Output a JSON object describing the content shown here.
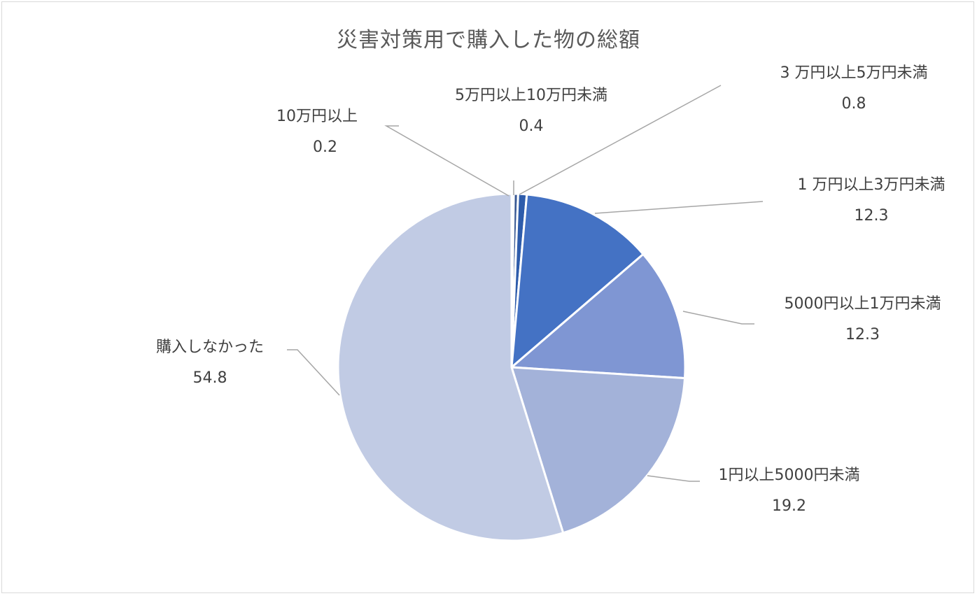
{
  "chart_data": {
    "type": "pie",
    "title": "災害対策用で購入した物の総額",
    "start_angle": "12 o'clock, clockwise",
    "slices": [
      {
        "label": "10万円以上",
        "value": 0.2,
        "color": "#2f4d7e"
      },
      {
        "label": "5万円以上10万円未満",
        "value": 0.4,
        "color": "#3a5a95"
      },
      {
        "label": "3万円以上5万円未満",
        "value": 0.8,
        "color": "#2e5cab"
      },
      {
        "label": "1万円以上3万円未満",
        "value": 12.3,
        "color": "#4472c4"
      },
      {
        "label": "5000円以上1万円未満",
        "value": 12.3,
        "color": "#7f96d3"
      },
      {
        "label": "1円以上5000円未満",
        "value": 19.2,
        "color": "#a3b2d9"
      },
      {
        "label": "購入しなかった",
        "value": 54.8,
        "color": "#c1cbe4"
      }
    ],
    "data_labels": "category name + value, with leader lines"
  },
  "labels": [
    {
      "name": "10万円以上",
      "value": "0.2"
    },
    {
      "name": "5万円以上10万円未満",
      "value": "0.4"
    },
    {
      "name": "3 万円以上5万円未満",
      "value": "0.8"
    },
    {
      "name": "1 万円以上3万円未満",
      "value": "12.3"
    },
    {
      "name": "5000円以上1万円未満",
      "value": "12.3"
    },
    {
      "name": "1円以上5000円未満",
      "value": "19.2"
    },
    {
      "name": "購入しなかった",
      "value": "54.8"
    }
  ]
}
